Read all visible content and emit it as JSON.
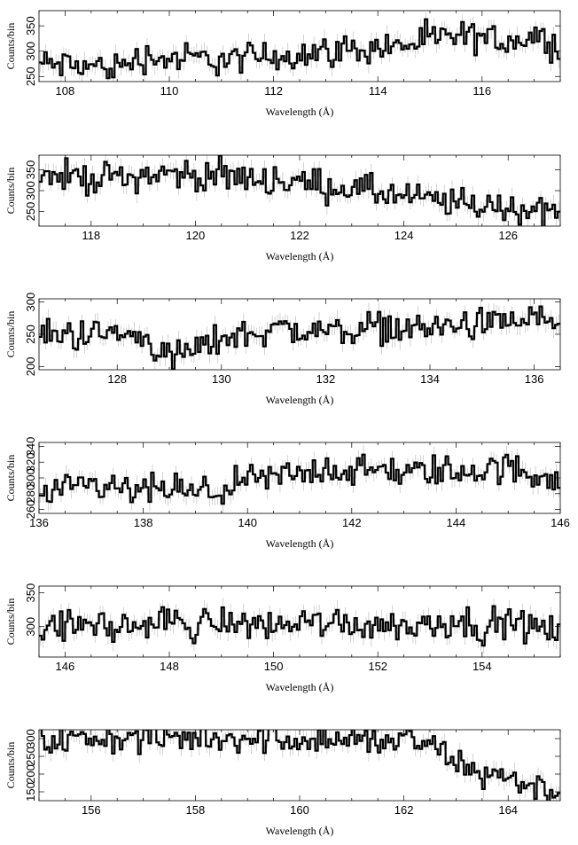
{
  "figure": {
    "xlabel": "Wavelength (Å)",
    "ylabel": "Counts/bin"
  },
  "chart_data": [
    {
      "type": "line",
      "xlim": [
        107.5,
        117.5
      ],
      "ylim": [
        240,
        380
      ],
      "xticks": [
        108,
        110,
        112,
        114,
        116
      ],
      "yticks": [
        250,
        300,
        350
      ],
      "xlabel": "Wavelength (Å)",
      "ylabel": "Counts/bin",
      "series": [
        {
          "x": [
            107.5,
            108.0,
            108.5,
            109.0,
            109.5,
            110.0,
            110.5,
            111.0,
            111.5,
            112.0,
            112.5,
            113.0,
            113.5,
            114.0,
            114.5,
            115.0,
            115.5,
            116.0,
            116.5,
            117.0,
            117.5
          ],
          "y": [
            275,
            272,
            270,
            268,
            290,
            284,
            286,
            283,
            286,
            290,
            295,
            299,
            303,
            307,
            312,
            322,
            328,
            325,
            322,
            330,
            312
          ]
        }
      ]
    },
    {
      "type": "line",
      "xlim": [
        117.0,
        127.0
      ],
      "ylim": [
        215,
        385
      ],
      "xticks": [
        118,
        120,
        122,
        124,
        126
      ],
      "yticks": [
        250,
        300,
        350
      ],
      "xlabel": "Wavelength (Å)",
      "ylabel": "Counts/bin",
      "series": [
        {
          "x": [
            117.0,
            117.5,
            118.0,
            118.5,
            119.0,
            119.5,
            120.0,
            120.5,
            121.0,
            121.5,
            122.0,
            122.5,
            123.0,
            123.5,
            124.0,
            124.5,
            125.0,
            125.5,
            126.0,
            126.5,
            127.0
          ],
          "y": [
            330,
            335,
            332,
            330,
            338,
            340,
            338,
            335,
            330,
            325,
            320,
            312,
            305,
            296,
            285,
            276,
            270,
            265,
            258,
            255,
            250
          ]
        }
      ]
    },
    {
      "type": "line",
      "xlim": [
        126.5,
        136.5
      ],
      "ylim": [
        195,
        305
      ],
      "xticks": [
        128,
        130,
        132,
        134,
        136
      ],
      "yticks": [
        200,
        250,
        300
      ],
      "xlabel": "Wavelength (Å)",
      "ylabel": "Counts/bin",
      "series": [
        {
          "x": [
            126.5,
            127.0,
            127.5,
            128.0,
            128.5,
            129.0,
            129.5,
            130.0,
            130.5,
            131.0,
            131.5,
            132.0,
            132.5,
            133.0,
            133.5,
            134.0,
            134.5,
            135.0,
            135.5,
            136.0,
            136.5
          ],
          "y": [
            248,
            250,
            252,
            250,
            245,
            215,
            225,
            245,
            250,
            260,
            255,
            255,
            258,
            262,
            258,
            260,
            263,
            265,
            268,
            275,
            270
          ]
        }
      ]
    },
    {
      "type": "line",
      "xlim": [
        136.0,
        146.0
      ],
      "ylim": [
        255,
        345
      ],
      "xticks": [
        136,
        138,
        140,
        142,
        144,
        146
      ],
      "yticks": [
        260,
        280,
        300,
        320,
        340
      ],
      "xlabel": "Wavelength (Å)",
      "ylabel": "Counts/bin",
      "series": [
        {
          "x": [
            136.0,
            136.5,
            137.0,
            137.5,
            138.0,
            138.5,
            139.0,
            139.5,
            140.0,
            140.5,
            141.0,
            141.5,
            142.0,
            142.5,
            143.0,
            143.5,
            144.0,
            144.5,
            145.0,
            145.5,
            146.0
          ],
          "y": [
            272,
            282,
            290,
            285,
            282,
            288,
            278,
            285,
            295,
            300,
            305,
            312,
            308,
            310,
            305,
            310,
            308,
            310,
            312,
            305,
            300
          ]
        }
      ]
    },
    {
      "type": "line",
      "xlim": [
        145.5,
        155.5
      ],
      "ylim": [
        255,
        360
      ],
      "xticks": [
        146,
        148,
        150,
        152,
        154
      ],
      "yticks": [
        300,
        350
      ],
      "xlabel": "Wavelength (Å)",
      "ylabel": "Counts/bin",
      "series": [
        {
          "x": [
            145.5,
            146.0,
            146.5,
            147.0,
            147.5,
            148.0,
            148.5,
            149.0,
            149.5,
            150.0,
            150.5,
            151.0,
            151.5,
            152.0,
            152.5,
            153.0,
            153.5,
            154.0,
            154.5,
            155.0,
            155.5
          ],
          "y": [
            295,
            300,
            305,
            298,
            302,
            310,
            300,
            308,
            304,
            302,
            305,
            308,
            303,
            305,
            300,
            305,
            310,
            300,
            305,
            298,
            295
          ]
        }
      ]
    },
    {
      "type": "line",
      "xlim": [
        155.0,
        165.0
      ],
      "ylim": [
        125,
        325
      ],
      "xticks": [
        156,
        158,
        160,
        162,
        164
      ],
      "yticks": [
        150,
        200,
        250,
        300
      ],
      "xlabel": "Wavelength (Å)",
      "ylabel": "Counts/bin",
      "series": [
        {
          "x": [
            155.0,
            155.5,
            156.0,
            156.5,
            157.0,
            157.5,
            158.0,
            158.5,
            159.0,
            159.5,
            160.0,
            160.5,
            161.0,
            161.5,
            162.0,
            162.5,
            163.0,
            163.5,
            164.0,
            164.5,
            165.0
          ],
          "y": [
            292,
            296,
            298,
            300,
            302,
            300,
            304,
            302,
            305,
            302,
            300,
            298,
            295,
            292,
            295,
            282,
            230,
            205,
            190,
            165,
            140
          ]
        }
      ]
    }
  ]
}
